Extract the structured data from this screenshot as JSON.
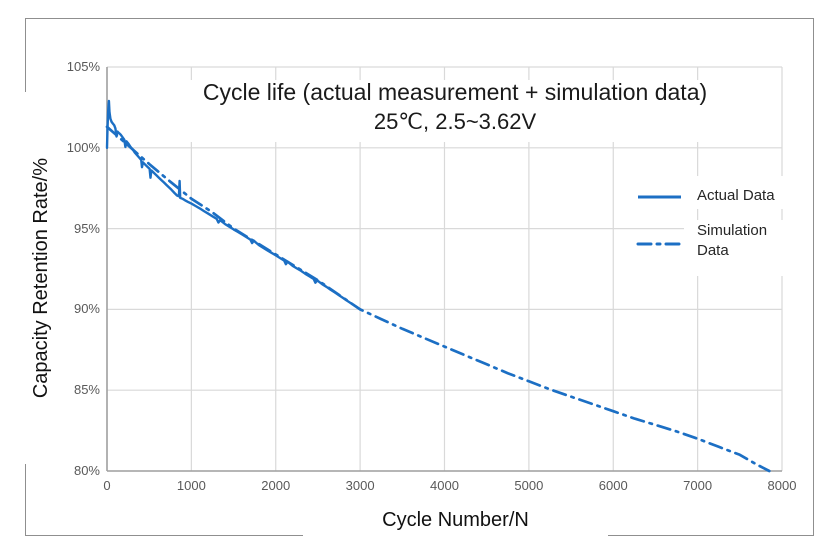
{
  "chart_data": {
    "type": "line",
    "title": "Cycle life (actual measurement + simulation data)",
    "subtitle": "25℃, 2.5~3.62V",
    "xlabel": "Cycle Number/N",
    "ylabel": "Capacity Retention Rate/%",
    "xlim": [
      0,
      8000
    ],
    "ylim": [
      80,
      105
    ],
    "x_ticks": [
      0,
      1000,
      2000,
      3000,
      4000,
      5000,
      6000,
      7000,
      8000
    ],
    "y_ticks": [
      80,
      85,
      90,
      95,
      100,
      105
    ],
    "y_tick_suffix": "%",
    "grid": true,
    "legend_position": "inside-right",
    "series": [
      {
        "name": "Actual Data",
        "line_style": "solid",
        "color": "#1c6fc4",
        "points": [
          [
            0,
            100
          ],
          [
            6,
            101.2
          ],
          [
            14,
            102.3
          ],
          [
            22,
            102.9
          ],
          [
            30,
            102.2
          ],
          [
            40,
            101.8
          ],
          [
            55,
            101.6
          ],
          [
            70,
            101.5
          ],
          [
            85,
            101.4
          ],
          [
            100,
            101.2
          ],
          [
            112,
            100.7
          ],
          [
            124,
            101.0
          ],
          [
            145,
            100.9
          ],
          [
            165,
            100.8
          ],
          [
            185,
            100.65
          ],
          [
            205,
            100.5
          ],
          [
            218,
            100.05
          ],
          [
            230,
            100.4
          ],
          [
            255,
            100.25
          ],
          [
            280,
            100.05
          ],
          [
            305,
            99.9
          ],
          [
            330,
            99.7
          ],
          [
            355,
            99.55
          ],
          [
            380,
            99.4
          ],
          [
            405,
            99.25
          ],
          [
            415,
            98.8
          ],
          [
            425,
            99.1
          ],
          [
            455,
            98.95
          ],
          [
            485,
            98.8
          ],
          [
            505,
            98.7
          ],
          [
            515,
            98.15
          ],
          [
            525,
            98.6
          ],
          [
            555,
            98.45
          ],
          [
            585,
            98.3
          ],
          [
            615,
            98.15
          ],
          [
            645,
            98.0
          ],
          [
            675,
            97.85
          ],
          [
            705,
            97.7
          ],
          [
            735,
            97.55
          ],
          [
            765,
            97.4
          ],
          [
            800,
            97.2
          ],
          [
            830,
            97.05
          ],
          [
            852,
            97.0
          ],
          [
            860,
            97.95
          ],
          [
            868,
            96.9
          ],
          [
            895,
            96.85
          ],
          [
            925,
            96.75
          ],
          [
            960,
            96.65
          ],
          [
            1000,
            96.55
          ],
          [
            1050,
            96.4
          ],
          [
            1100,
            96.25
          ],
          [
            1150,
            96.08
          ],
          [
            1200,
            95.92
          ],
          [
            1250,
            95.76
          ],
          [
            1300,
            95.6
          ],
          [
            1320,
            95.38
          ],
          [
            1340,
            95.52
          ],
          [
            1400,
            95.28
          ],
          [
            1450,
            95.12
          ],
          [
            1500,
            94.95
          ],
          [
            1550,
            94.8
          ],
          [
            1600,
            94.64
          ],
          [
            1650,
            94.48
          ],
          [
            1700,
            94.32
          ],
          [
            1720,
            94.1
          ],
          [
            1740,
            94.25
          ],
          [
            1800,
            93.98
          ],
          [
            1850,
            93.82
          ],
          [
            1900,
            93.66
          ],
          [
            1950,
            93.5
          ],
          [
            2000,
            93.34
          ],
          [
            2050,
            93.18
          ],
          [
            2100,
            93.02
          ],
          [
            2120,
            92.8
          ],
          [
            2140,
            92.95
          ],
          [
            2200,
            92.7
          ],
          [
            2250,
            92.54
          ],
          [
            2300,
            92.38
          ],
          [
            2350,
            92.2
          ],
          [
            2400,
            92.04
          ],
          [
            2450,
            91.88
          ],
          [
            2470,
            91.65
          ],
          [
            2490,
            91.8
          ],
          [
            2550,
            91.56
          ],
          [
            2600,
            91.4
          ],
          [
            2650,
            91.22
          ],
          [
            2700,
            91.05
          ],
          [
            2750,
            90.88
          ],
          [
            2800,
            90.7
          ],
          [
            2850,
            90.52
          ],
          [
            2900,
            90.35
          ],
          [
            2950,
            90.18
          ],
          [
            3000,
            90
          ]
        ]
      },
      {
        "name": "Simulation Data",
        "line_style": "dash-dot",
        "color": "#1c6fc4",
        "points": [
          [
            0,
            101.3
          ],
          [
            250,
            100.15
          ],
          [
            500,
            99.0
          ],
          [
            750,
            97.9
          ],
          [
            1000,
            96.85
          ],
          [
            1250,
            96.0
          ],
          [
            1500,
            95.0
          ],
          [
            1750,
            94.2
          ],
          [
            2000,
            93.4
          ],
          [
            2250,
            92.6
          ],
          [
            2500,
            91.8
          ],
          [
            2750,
            90.9
          ],
          [
            3000,
            90.0
          ],
          [
            3250,
            89.4
          ],
          [
            3500,
            88.8
          ],
          [
            3750,
            88.25
          ],
          [
            4000,
            87.7
          ],
          [
            4250,
            87.15
          ],
          [
            4500,
            86.6
          ],
          [
            4750,
            86.05
          ],
          [
            5000,
            85.55
          ],
          [
            5250,
            85.05
          ],
          [
            5500,
            84.6
          ],
          [
            5750,
            84.15
          ],
          [
            6000,
            83.7
          ],
          [
            6250,
            83.25
          ],
          [
            6500,
            82.85
          ],
          [
            6750,
            82.45
          ],
          [
            7000,
            82.0
          ],
          [
            7250,
            81.5
          ],
          [
            7500,
            81.0
          ],
          [
            7700,
            80.4
          ],
          [
            7850,
            80.0
          ]
        ]
      }
    ]
  },
  "legend": {
    "actual_label": "Actual Data",
    "simulation_label_line1": "Simulation",
    "simulation_label_line2": "Data"
  },
  "colors": {
    "series_blue": "#1c6fc4",
    "gridline": "#d9d9d9",
    "axis_line": "#a0a0a0",
    "tick_text": "#595959",
    "title_text": "#1a1a1a",
    "legend_text": "#262626",
    "border": "#8f8f8f"
  }
}
